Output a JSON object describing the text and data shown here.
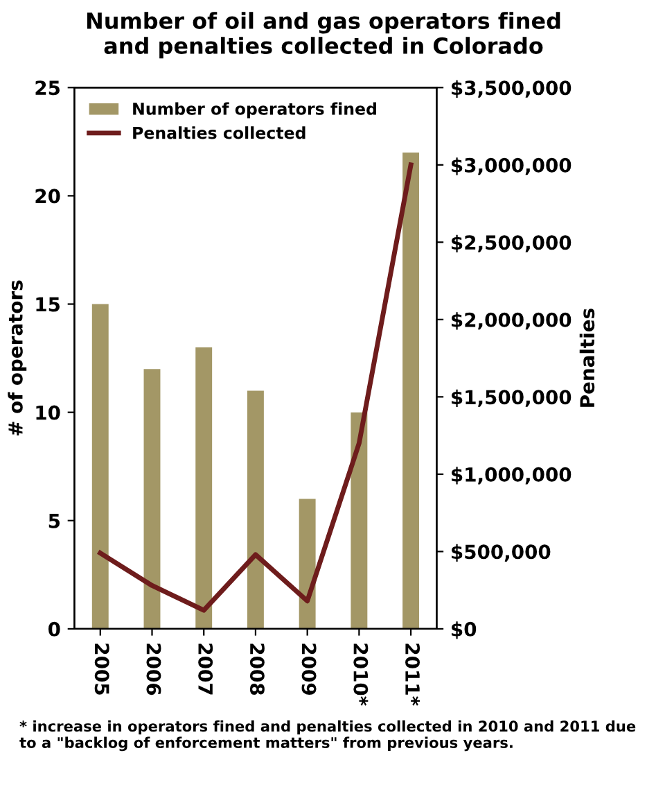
{
  "chart_data": {
    "type": "bar",
    "title": "Number of oil and gas operators fined\nand penalties collected in Colorado",
    "categories": [
      "2005",
      "2006",
      "2007",
      "2008",
      "2009",
      "2010*",
      "2011*"
    ],
    "series": [
      {
        "name": "Number of operators fined",
        "color": "#a39766",
        "values": [
          15,
          12,
          13,
          11,
          6,
          10,
          22
        ]
      },
      {
        "name": "Penalties collected",
        "type": "line",
        "axis": "y2",
        "color": "#6e1c1c",
        "values": [
          490000,
          280000,
          120000,
          480000,
          180000,
          1200000,
          3000000
        ]
      }
    ],
    "ylabel": "# of operators",
    "y2label": "Penalties",
    "ylim": [
      0,
      25
    ],
    "yticks": [
      0,
      5,
      10,
      15,
      20,
      25
    ],
    "y2lim": [
      0,
      3500000
    ],
    "y2ticks": [
      {
        "value": 0,
        "label": "$0"
      },
      {
        "value": 500000,
        "label": "$500,000"
      },
      {
        "value": 1000000,
        "label": "$1,000,000"
      },
      {
        "value": 1500000,
        "label": "$1,500,000"
      },
      {
        "value": 2000000,
        "label": "$2,000,000"
      },
      {
        "value": 2500000,
        "label": "$2,500,000"
      },
      {
        "value": 3000000,
        "label": "$3,000,000"
      },
      {
        "value": 3500000,
        "label": "$3,500,000"
      }
    ],
    "legend": "top left",
    "grid": false,
    "marker": "none",
    "line_style": "solid",
    "annotations": [
      "* increase in operators fined and penalties collected in 2010 and 2011 due to a \"backlog of enforcement matters\" from previous years."
    ]
  }
}
